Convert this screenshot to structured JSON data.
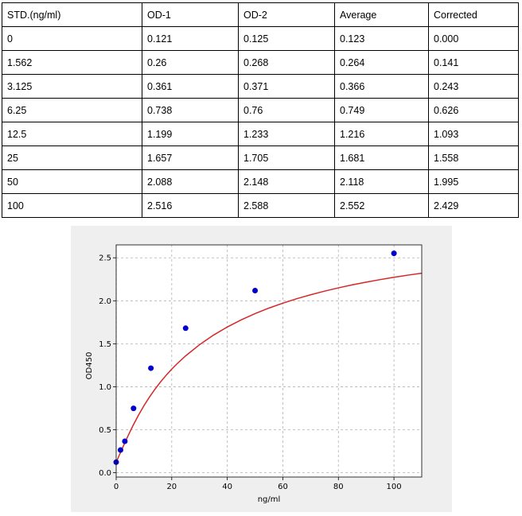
{
  "table": {
    "headers": [
      "STD.(ng/ml)",
      "OD-1",
      "OD-2",
      "Average",
      "Corrected"
    ],
    "rows": [
      [
        "0",
        "0.121",
        "0.125",
        "0.123",
        "0.000"
      ],
      [
        "1.562",
        "0.26",
        "0.268",
        "0.264",
        "0.141"
      ],
      [
        "3.125",
        "0.361",
        "0.371",
        "0.366",
        "0.243"
      ],
      [
        "6.25",
        "0.738",
        "0.76",
        "0.749",
        "0.626"
      ],
      [
        "12.5",
        "1.199",
        "1.233",
        "1.216",
        "1.093"
      ],
      [
        "25",
        "1.657",
        "1.705",
        "1.681",
        "1.558"
      ],
      [
        "50",
        "2.088",
        "2.148",
        "2.118",
        "1.995"
      ],
      [
        "100",
        "2.516",
        "2.588",
        "2.552",
        "2.429"
      ]
    ]
  },
  "chart_data": {
    "type": "scatter",
    "title": "",
    "xlabel": "ng/ml",
    "ylabel": "OD450",
    "xlim": [
      0,
      110
    ],
    "ylim": [
      -0.05,
      2.65
    ],
    "xticks": [
      0,
      20,
      40,
      60,
      80,
      100
    ],
    "yticks": [
      0.0,
      0.5,
      1.0,
      1.5,
      2.0,
      2.5
    ],
    "grid": true,
    "points": {
      "x": [
        0,
        1.562,
        3.125,
        6.25,
        12.5,
        25,
        50,
        100
      ],
      "y": [
        0.123,
        0.264,
        0.366,
        0.749,
        1.216,
        1.681,
        2.118,
        2.552
      ],
      "color": "#0000cc"
    },
    "fit_curve": {
      "x": [
        0,
        1,
        2,
        3,
        4,
        5,
        6,
        8,
        10,
        12,
        14,
        16,
        18,
        20,
        22,
        25,
        30,
        35,
        40,
        45,
        50,
        55,
        60,
        65,
        70,
        75,
        80,
        85,
        90,
        95,
        100,
        105,
        110
      ],
      "y": [
        0.123,
        0.195,
        0.268,
        0.34,
        0.411,
        0.479,
        0.545,
        0.668,
        0.78,
        0.881,
        0.973,
        1.057,
        1.134,
        1.205,
        1.27,
        1.359,
        1.489,
        1.6,
        1.695,
        1.778,
        1.851,
        1.915,
        1.972,
        2.024,
        2.07,
        2.112,
        2.15,
        2.185,
        2.217,
        2.246,
        2.273,
        2.298,
        2.321
      ],
      "color": "#d62728"
    }
  }
}
